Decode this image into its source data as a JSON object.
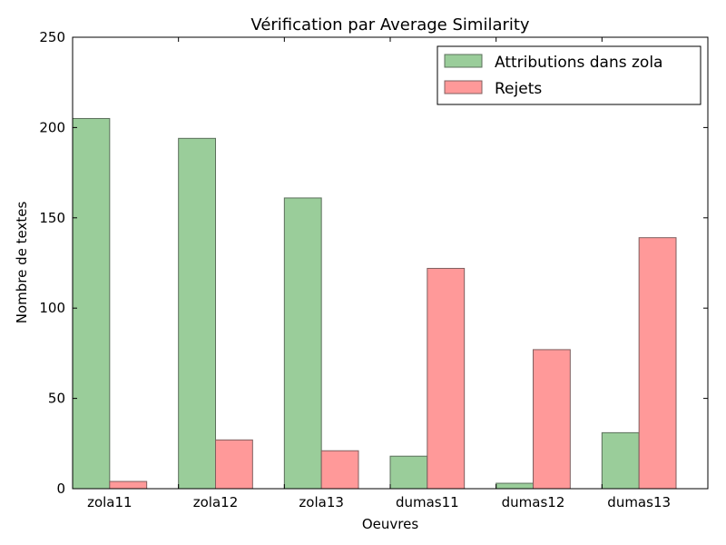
{
  "chart_data": {
    "type": "bar",
    "title": "Vérification par Average Similarity",
    "xlabel": "Oeuvres",
    "ylabel": "Nombre de textes",
    "categories": [
      "zola11",
      "zola12",
      "zola13",
      "dumas11",
      "dumas12",
      "dumas13"
    ],
    "series": [
      {
        "name": "Attributions dans zola",
        "color": "#9acd9a",
        "values": [
          205,
          194,
          161,
          18,
          3,
          31
        ]
      },
      {
        "name": "Rejets",
        "color": "#ff9999",
        "values": [
          4,
          27,
          21,
          122,
          77,
          139
        ]
      }
    ],
    "ylim": [
      0,
      250
    ],
    "yticks": [
      0,
      50,
      100,
      150,
      200,
      250
    ],
    "grid": false,
    "legend_position": "top-right"
  }
}
